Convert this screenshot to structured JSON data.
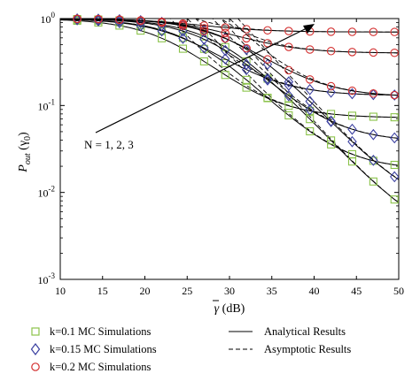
{
  "chart_data": {
    "type": "line",
    "y_scale": "log",
    "xlim": [
      10,
      50
    ],
    "ylim": [
      0.001,
      1
    ],
    "x_ticks": [
      "10",
      "15",
      "20",
      "25",
      "30",
      "35",
      "40",
      "45",
      "50"
    ],
    "y_ticks": [
      {
        "value": 1,
        "base": "10",
        "exp": "0"
      },
      {
        "value": 0.1,
        "base": "10",
        "exp": "-1"
      },
      {
        "value": 0.01,
        "base": "10",
        "exp": "-2"
      },
      {
        "value": 0.001,
        "base": "10",
        "exp": "-3"
      }
    ],
    "ylabel_main": "P",
    "ylabel_sub": "out",
    "ylabel_arg": " (γ",
    "ylabel_arg_sub": "0",
    "ylabel_close": ")",
    "xlabel_sym": "γ",
    "xlabel_unit": " (dB)",
    "annotation": "N = 1, 2, 3",
    "legend": [
      {
        "label": "k=0.1 MC Simulations",
        "marker": "square",
        "color": "#8bc34a"
      },
      {
        "label": "k=0.15 MC Simulations",
        "marker": "diamond",
        "color": "#3a3fa0"
      },
      {
        "label": "k=0.2 MC Simulations",
        "marker": "circle",
        "color": "#d32f2f"
      },
      {
        "label": "Analytical Results",
        "style": "solid"
      },
      {
        "label": "Asymptotic Results",
        "style": "dashed"
      }
    ],
    "marker_x": [
      12,
      14.5,
      17,
      19.5,
      22,
      24.5,
      27,
      29.5,
      32,
      34.5,
      37,
      39.5,
      42,
      44.5,
      47,
      49.5
    ],
    "series": [
      {
        "k": 0.1,
        "N": 1,
        "marker": "square",
        "color": "#8bc34a",
        "floor": 0.072,
        "mid": 23
      },
      {
        "k": 0.1,
        "N": 2,
        "marker": "square",
        "color": "#8bc34a",
        "floor": 0.018,
        "mid": 26
      },
      {
        "k": 0.1,
        "N": 3,
        "marker": "square",
        "color": "#8bc34a",
        "floor": 0.0024,
        "mid": 29
      },
      {
        "k": 0.15,
        "N": 1,
        "marker": "diamond",
        "color": "#3a3fa0",
        "floor": 0.13,
        "mid": 25
      },
      {
        "k": 0.15,
        "N": 2,
        "marker": "diamond",
        "color": "#3a3fa0",
        "floor": 0.038,
        "mid": 28
      },
      {
        "k": 0.15,
        "N": 3,
        "marker": "diamond",
        "color": "#3a3fa0",
        "floor": 0.0055,
        "mid": 31
      },
      {
        "k": 0.2,
        "N": 1,
        "marker": "circle",
        "color": "#d32f2f",
        "floor": 0.7,
        "mid": 26
      },
      {
        "k": 0.2,
        "N": 2,
        "marker": "circle",
        "color": "#d32f2f",
        "floor": 0.4,
        "mid": 29
      },
      {
        "k": 0.2,
        "N": 3,
        "marker": "circle",
        "color": "#d32f2f",
        "floor": 0.125,
        "mid": 30
      }
    ]
  }
}
